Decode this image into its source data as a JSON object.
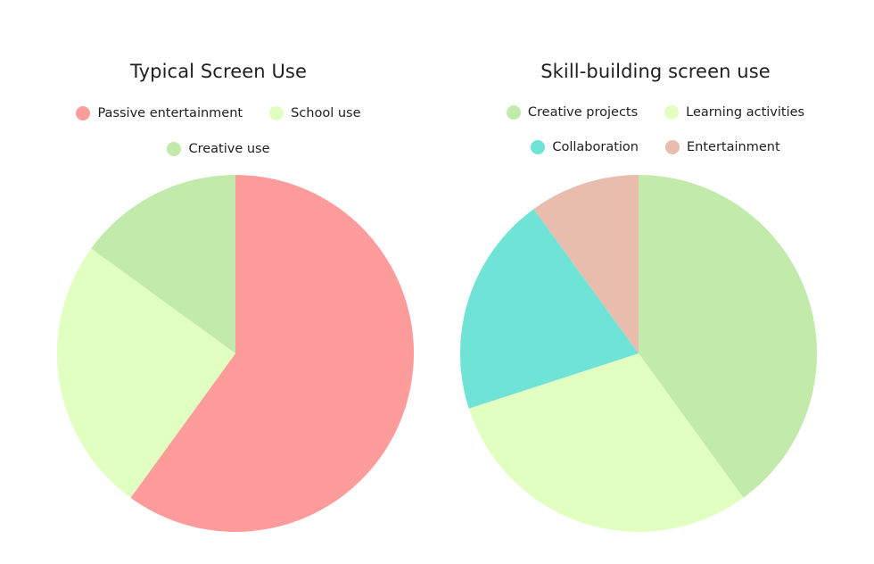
{
  "chart_data": [
    {
      "type": "pie",
      "title": "Typical Screen Use",
      "legend_position": "top",
      "start_angle": "12 o'clock",
      "direction": "clockwise",
      "slices": [
        {
          "label": "Passive entertainment",
          "value": 60,
          "color": "#fe9b9b"
        },
        {
          "label": "School use",
          "value": 25,
          "color": "#e1ffc1"
        },
        {
          "label": "Creative use",
          "value": 15,
          "color": "#c2ebab"
        }
      ]
    },
    {
      "type": "pie",
      "title": "Skill-building screen use",
      "legend_position": "top",
      "start_angle": "12 o'clock",
      "direction": "clockwise",
      "slices": [
        {
          "label": "Creative projects",
          "value": 40,
          "color": "#c2ebab"
        },
        {
          "label": "Learning activities",
          "value": 30,
          "color": "#e1ffc1"
        },
        {
          "label": "Collaboration",
          "value": 20,
          "color": "#70e3d7"
        },
        {
          "label": "Entertainment",
          "value": 10,
          "color": "#e8bdae"
        }
      ]
    }
  ]
}
